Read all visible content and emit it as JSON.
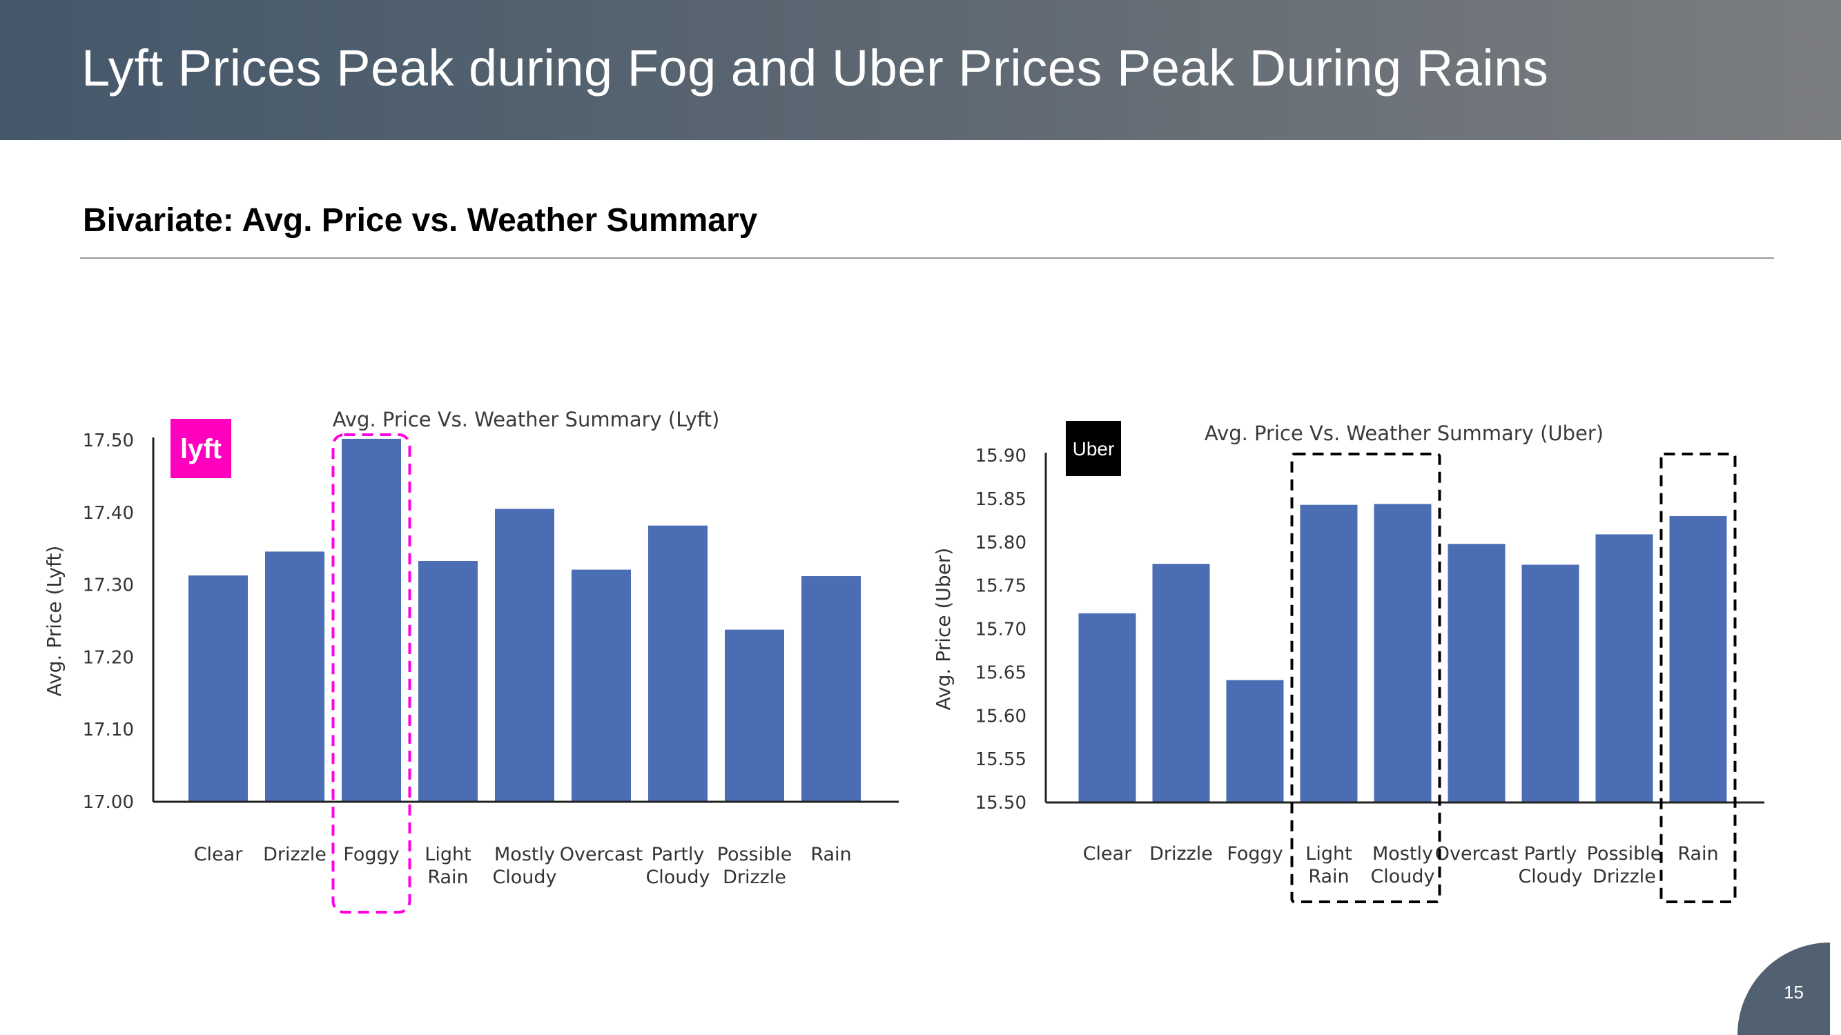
{
  "slide": {
    "title": "Lyft Prices Peak during Fog and Uber Prices Peak During Rains",
    "subtitle": "Bivariate: Avg. Price vs. Weather Summary",
    "page_number": "15"
  },
  "chart_data": [
    {
      "type": "bar",
      "title": "Avg. Price Vs. Weather Summary (Lyft)",
      "xlabel": "",
      "ylabel": "Avg. Price (Lyft)",
      "categories": [
        "Clear",
        "Drizzle",
        "Foggy",
        "Light\nRain",
        "Mostly\nCloudy",
        "Overcast",
        "Partly\nCloudy",
        "Possible\nDrizzle",
        "Rain"
      ],
      "values": [
        17.313,
        17.346,
        17.502,
        17.333,
        17.405,
        17.321,
        17.382,
        17.238,
        17.312
      ],
      "ylim": [
        17.0,
        17.5
      ],
      "yticks": [
        "17.00",
        "17.10",
        "17.20",
        "17.30",
        "17.40",
        "17.50"
      ],
      "bar_color": "#4a6db3",
      "highlight_color": "#ff00e0",
      "highlight_categories": [
        "Foggy"
      ],
      "logo": {
        "text": "lyft",
        "icon": "lyft-logo-icon",
        "color": "#ff00bf"
      },
      "grid": false
    },
    {
      "type": "bar",
      "title": "Avg. Price Vs. Weather Summary (Uber)",
      "xlabel": "",
      "ylabel": "Avg. Price (Uber)",
      "categories": [
        "Clear",
        "Drizzle",
        "Foggy",
        "Light\nRain",
        "Mostly\nCloudy",
        "Overcast",
        "Partly\nCloudy",
        "Possible\nDrizzle",
        "Rain"
      ],
      "values": [
        15.718,
        15.775,
        15.641,
        15.843,
        15.844,
        15.798,
        15.774,
        15.809,
        15.83
      ],
      "ylim": [
        15.5,
        15.9
      ],
      "yticks": [
        "15.50",
        "15.55",
        "15.60",
        "15.65",
        "15.70",
        "15.75",
        "15.80",
        "15.85",
        "15.90"
      ],
      "bar_color": "#4a6db3",
      "highlight_color": "#000000",
      "highlight_categories": [
        "Light\nRain",
        "Mostly\nCloudy",
        "Rain"
      ],
      "logo": {
        "text": "Uber",
        "icon": "uber-logo-icon",
        "color": "#000000"
      },
      "grid": false
    }
  ]
}
